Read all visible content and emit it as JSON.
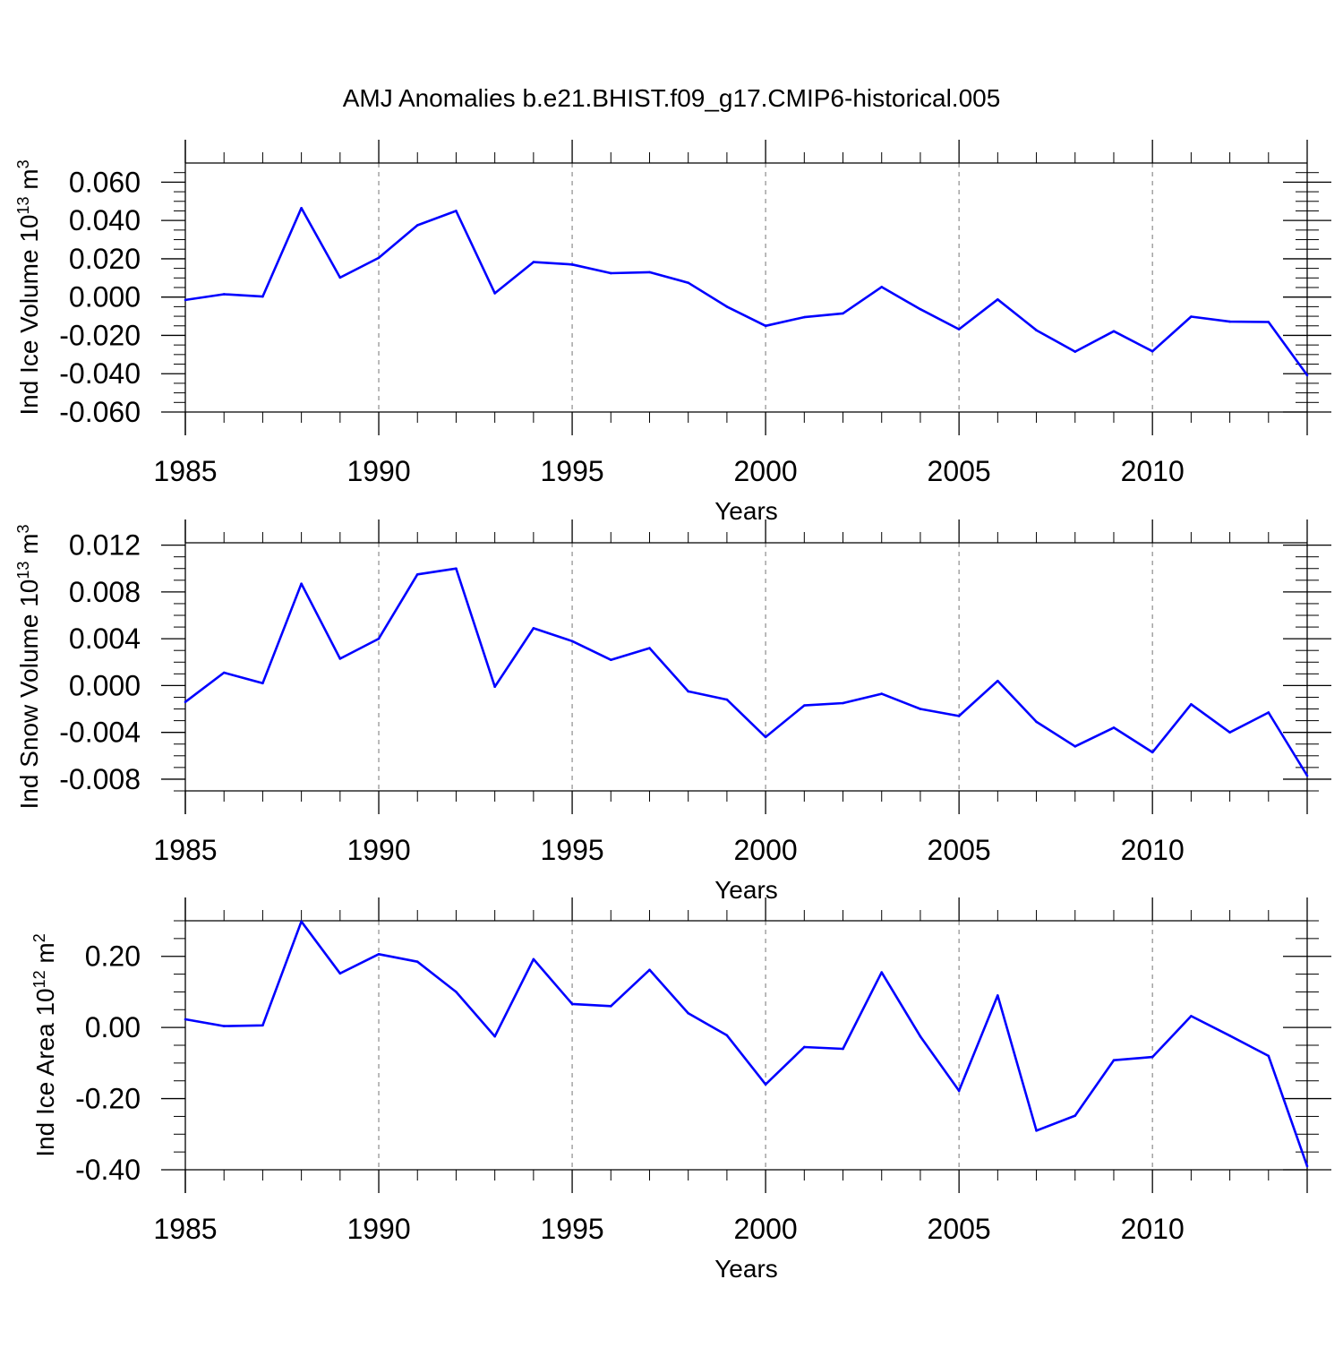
{
  "figure_title": "AMJ Anomalies b.e21.BHIST.f09_g17.CMIP6-historical.005",
  "colors": {
    "line": "#0000ff",
    "axes": "#000000",
    "grid": "#8c8c8c"
  },
  "chart_data": [
    {
      "type": "line",
      "title": "",
      "xlabel": "Years",
      "ylabel_main": "Ind Ice Volume 10",
      "ylabel_exp": "13",
      "ylabel_unit": " m",
      "ylabel_unit_exp": "3",
      "xlim": [
        1985,
        2014
      ],
      "ylim": [
        -0.06,
        0.07
      ],
      "yticks": [
        -0.06,
        -0.04,
        -0.02,
        0.0,
        0.02,
        0.04,
        0.06
      ],
      "ytick_labels": [
        "-0.060",
        "-0.040",
        "-0.020",
        "0.000",
        "0.020",
        "0.040",
        "0.060"
      ],
      "yminor": [
        -0.055,
        -0.05,
        -0.045,
        -0.035,
        -0.03,
        -0.025,
        -0.015,
        -0.01,
        -0.005,
        0.005,
        0.01,
        0.015,
        0.025,
        0.03,
        0.035,
        0.045,
        0.05,
        0.055,
        0.065
      ],
      "xticks": [
        1985,
        1990,
        1995,
        2000,
        2005,
        2010
      ],
      "xtick_labels": [
        "1985",
        "1990",
        "1995",
        "2000",
        "2005",
        "2010"
      ],
      "grid": "vertical dashed at major x ticks",
      "x": [
        1985,
        1986,
        1987,
        1988,
        1989,
        1990,
        1991,
        1992,
        1993,
        1994,
        1995,
        1996,
        1997,
        1998,
        1999,
        2000,
        2001,
        2002,
        2003,
        2004,
        2005,
        2006,
        2007,
        2008,
        2009,
        2010,
        2011,
        2012,
        2013,
        2014
      ],
      "series": [
        {
          "values": [
            -0.0015,
            0.0015,
            0.0003,
            0.0465,
            0.0102,
            0.0205,
            0.0375,
            0.045,
            0.002,
            0.0183,
            0.017,
            0.0125,
            0.013,
            0.0075,
            -0.005,
            -0.015,
            -0.0105,
            -0.0085,
            0.0053,
            -0.0063,
            -0.0168,
            -0.0012,
            -0.0173,
            -0.0285,
            -0.0178,
            -0.0283,
            -0.0102,
            -0.0128,
            -0.013,
            -0.0408
          ]
        }
      ]
    },
    {
      "type": "line",
      "title": "",
      "xlabel": "Years",
      "ylabel_main": "Ind Snow Volume 10",
      "ylabel_exp": "13",
      "ylabel_unit": " m",
      "ylabel_unit_exp": "3",
      "xlim": [
        1985,
        2014
      ],
      "ylim": [
        -0.009,
        0.0122
      ],
      "yticks": [
        -0.008,
        -0.004,
        0.0,
        0.004,
        0.008,
        0.012
      ],
      "ytick_labels": [
        "-0.008",
        "-0.004",
        "0.000",
        "0.004",
        "0.008",
        "0.012"
      ],
      "yminor": [
        -0.009,
        -0.007,
        -0.006,
        -0.005,
        -0.003,
        -0.002,
        -0.001,
        0.001,
        0.002,
        0.003,
        0.005,
        0.006,
        0.007,
        0.009,
        0.01,
        0.011
      ],
      "xticks": [
        1985,
        1990,
        1995,
        2000,
        2005,
        2010
      ],
      "xtick_labels": [
        "1985",
        "1990",
        "1995",
        "2000",
        "2005",
        "2010"
      ],
      "grid": "vertical dashed at major x ticks",
      "x": [
        1985,
        1986,
        1987,
        1988,
        1989,
        1990,
        1991,
        1992,
        1993,
        1994,
        1995,
        1996,
        1997,
        1998,
        1999,
        2000,
        2001,
        2002,
        2003,
        2004,
        2005,
        2006,
        2007,
        2008,
        2009,
        2010,
        2011,
        2012,
        2013,
        2014
      ],
      "series": [
        {
          "values": [
            -0.0014,
            0.0011,
            0.0002,
            0.0087,
            0.0023,
            0.004,
            0.0095,
            0.01,
            -0.0001,
            0.0049,
            0.0038,
            0.0022,
            0.0032,
            -0.0005,
            -0.0012,
            -0.0044,
            -0.0017,
            -0.0015,
            -0.0007,
            -0.002,
            -0.0026,
            0.0004,
            -0.0031,
            -0.0052,
            -0.0036,
            -0.0057,
            -0.0016,
            -0.004,
            -0.0023,
            -0.0077
          ]
        }
      ]
    },
    {
      "type": "line",
      "title": "",
      "xlabel": "Years",
      "ylabel_main": "Ind Ice Area 10",
      "ylabel_exp": "12",
      "ylabel_unit": " m",
      "ylabel_unit_exp": "2",
      "xlim": [
        1985,
        2014
      ],
      "ylim": [
        -0.4,
        0.3
      ],
      "yticks": [
        -0.4,
        -0.2,
        0.0,
        0.2
      ],
      "ytick_labels": [
        "-0.40",
        "-0.20",
        "0.00",
        "0.20"
      ],
      "yminor": [
        -0.35,
        -0.3,
        -0.25,
        -0.15,
        -0.1,
        -0.05,
        0.05,
        0.1,
        0.15,
        0.25,
        0.3
      ],
      "xticks": [
        1985,
        1990,
        1995,
        2000,
        2005,
        2010
      ],
      "xtick_labels": [
        "1985",
        "1990",
        "1995",
        "2000",
        "2005",
        "2010"
      ],
      "grid": "vertical dashed at major x ticks",
      "x": [
        1985,
        1986,
        1987,
        1988,
        1989,
        1990,
        1991,
        1992,
        1993,
        1994,
        1995,
        1996,
        1997,
        1998,
        1999,
        2000,
        2001,
        2002,
        2003,
        2004,
        2005,
        2006,
        2007,
        2008,
        2009,
        2010,
        2011,
        2012,
        2013,
        2014
      ],
      "series": [
        {
          "values": [
            0.023,
            0.004,
            0.006,
            0.298,
            0.152,
            0.206,
            0.185,
            0.1,
            -0.025,
            0.192,
            0.066,
            0.06,
            0.162,
            0.04,
            -0.022,
            -0.16,
            -0.055,
            -0.06,
            0.155,
            -0.025,
            -0.178,
            0.09,
            -0.29,
            -0.248,
            -0.092,
            -0.083,
            0.032,
            -0.023,
            -0.08,
            -0.39
          ]
        }
      ]
    }
  ]
}
